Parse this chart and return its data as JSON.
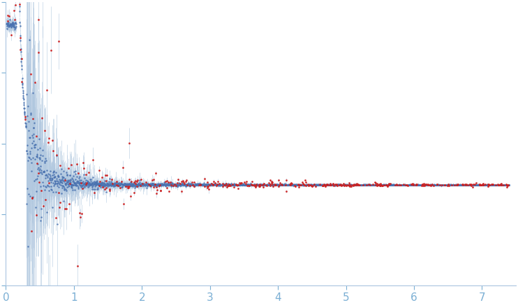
{
  "xlim": [
    0,
    7.5
  ],
  "x_ticks": [
    0,
    1,
    2,
    3,
    4,
    5,
    6,
    7
  ],
  "background_color": "#ffffff",
  "error_bar_color": "#aec6de",
  "blue_dot_color": "#4a72b0",
  "red_dot_color": "#cc2222",
  "dot_size": 3,
  "n_points": 3000,
  "seed": 7
}
